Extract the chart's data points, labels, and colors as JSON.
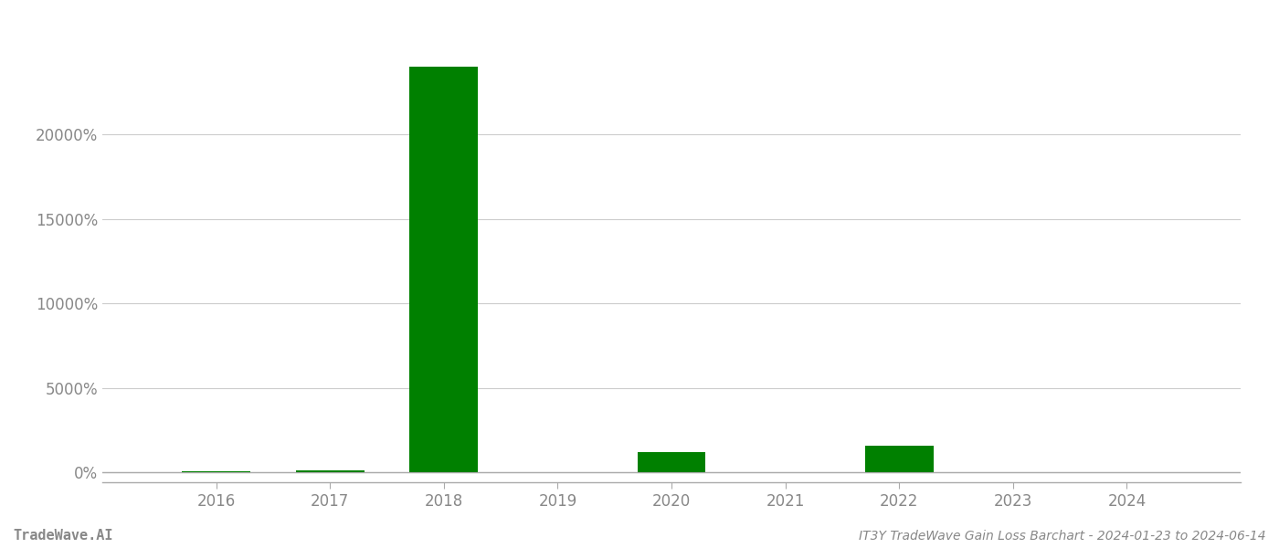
{
  "years": [
    2016,
    2017,
    2018,
    2019,
    2020,
    2021,
    2022,
    2023,
    2024
  ],
  "values": [
    50,
    100,
    24000,
    0,
    1200,
    0,
    1550,
    0,
    0
  ],
  "bar_color": "#008000",
  "background_color": "#ffffff",
  "grid_color": "#cccccc",
  "axis_color": "#aaaaaa",
  "text_color": "#888888",
  "title_text": "IT3Y TradeWave Gain Loss Barchart - 2024-01-23 to 2024-06-14",
  "watermark_text": "TradeWave.AI",
  "yticks": [
    0,
    5000,
    10000,
    15000,
    20000
  ],
  "ylim": [
    -600,
    27000
  ],
  "bar_width": 0.6,
  "figsize": [
    14.0,
    6.0
  ],
  "dpi": 100,
  "xlim_left": 2015.0,
  "xlim_right": 2025.0
}
